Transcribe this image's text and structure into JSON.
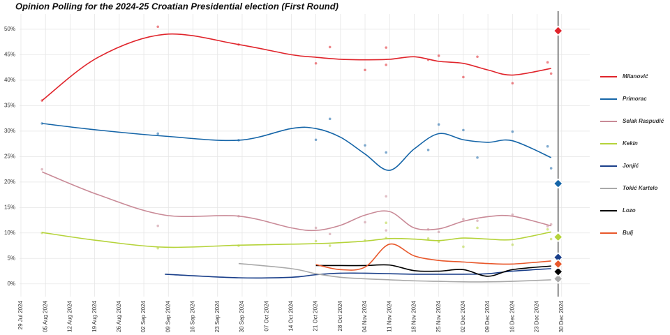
{
  "chart_data": {
    "type": "line",
    "title": "Opinion Polling for the 2024-25 Croatian Presidential election (First Round)",
    "x": [
      "2024-08-04",
      "2024-08-20",
      "2024-09-08",
      "2024-09-29",
      "2024-10-14",
      "2024-10-21",
      "2024-10-28",
      "2024-11-04",
      "2024-11-11",
      "2024-11-18",
      "2024-11-25",
      "2024-12-02",
      "2024-12-09",
      "2024-12-16",
      "2024-12-27"
    ],
    "poll_dates": [
      "2024-08-04",
      "2024-09-06",
      "2024-09-29",
      "2024-10-21",
      "2024-10-25",
      "2024-11-04",
      "2024-11-10",
      "2024-11-10",
      "2024-11-22",
      "2024-11-25",
      "2024-12-02",
      "2024-12-06",
      "2024-12-16",
      "2024-12-26",
      "2024-12-27"
    ],
    "result_date": "2024-12-29",
    "series": [
      {
        "name": "Milanović",
        "color": "#e0242b",
        "values": [
          36,
          44.5,
          49,
          47,
          45,
          44.5,
          44.1,
          44,
          44.1,
          44.6,
          43.7,
          43.3,
          42,
          41,
          42.3
        ],
        "polls": [
          36,
          50.5,
          47,
          43.3,
          46.5,
          42,
          46.4,
          43,
          44,
          44.8,
          40.6,
          44.6,
          39.4,
          43.5,
          41.3
        ],
        "result": 49.7
      },
      {
        "name": "Primorac",
        "color": "#1565a8",
        "values": [
          31.5,
          30.2,
          29,
          28.2,
          30.5,
          30.5,
          28.8,
          25.5,
          22.3,
          26.5,
          29.5,
          28.3,
          27.8,
          28.1,
          24.8
        ],
        "polls": [
          31.5,
          29.5,
          28.2,
          28.3,
          32.4,
          27.2,
          25.8,
          null,
          26.3,
          31.3,
          30.2,
          24.8,
          29.9,
          27,
          22.7
        ],
        "result": 19.7
      },
      {
        "name": "Selak Raspudić",
        "color": "#c98a97",
        "values": [
          22,
          17.5,
          13.5,
          13.3,
          11,
          10.5,
          11.5,
          13.5,
          14.2,
          11,
          10.8,
          12.3,
          13.2,
          13.3,
          11.4
        ],
        "polls": [
          22.5,
          11.4,
          13.3,
          11,
          9.8,
          12.1,
          17.2,
          10.5,
          10.7,
          10.2,
          12.7,
          12.4,
          13.6,
          11.3,
          11.7
        ],
        "result": 9.3
      },
      {
        "name": "Kekin",
        "color": "#b5d33a",
        "values": [
          10.1,
          8.5,
          7.2,
          7.6,
          7.8,
          7.9,
          8.1,
          8.4,
          8.9,
          8.8,
          8.5,
          9,
          8.8,
          8.7,
          10.2
        ],
        "polls": [
          10,
          7,
          7.5,
          8.4,
          7.5,
          8.5,
          12,
          9,
          8.9,
          8.3,
          7.3,
          11,
          7.7,
          10.7,
          8.8
        ],
        "result": 9.2
      },
      {
        "name": "Jonjić",
        "color": "#1a3f8a",
        "values": [
          null,
          null,
          1.9,
          1.2,
          1.3,
          1.8,
          2.1,
          2.1,
          2,
          1.9,
          1.9,
          1.9,
          2,
          2.5,
          3
        ],
        "result": 5.2
      },
      {
        "name": "Tokić Kartelo",
        "color": "#a9a9a9",
        "values": [
          null,
          null,
          null,
          4,
          3,
          2,
          1.3,
          1,
          0.8,
          0.6,
          0.5,
          0.4,
          0.4,
          0.5,
          0.8
        ],
        "result": 1
      },
      {
        "name": "Lozo",
        "color": "#000000",
        "values": [
          null,
          null,
          null,
          null,
          null,
          3.6,
          3.6,
          3.6,
          3.7,
          2.6,
          2.5,
          2.8,
          1.5,
          2.8,
          3.5
        ],
        "result": 2.4
      },
      {
        "name": "Bulj",
        "color": "#e8572a",
        "values": [
          null,
          null,
          null,
          null,
          null,
          3.8,
          2.8,
          3.3,
          7.8,
          5.5,
          4.6,
          4.3,
          4,
          3.9,
          4.5
        ],
        "result": 3.9
      }
    ],
    "xlim": [
      "2024-07-29",
      "2025-01-07"
    ],
    "xticks": [
      {
        "value": "2024-07-29",
        "label": "29 Jul 2024"
      },
      {
        "value": "2024-08-05",
        "label": "05 Aug 2024"
      },
      {
        "value": "2024-08-12",
        "label": "12 Aug 2024"
      },
      {
        "value": "2024-08-19",
        "label": "19 Aug 2024"
      },
      {
        "value": "2024-08-26",
        "label": "26 Aug 2024"
      },
      {
        "value": "2024-09-02",
        "label": "02 Sep 2024"
      },
      {
        "value": "2024-09-09",
        "label": "09 Sep 2024"
      },
      {
        "value": "2024-09-16",
        "label": "16 Sep 2024"
      },
      {
        "value": "2024-09-23",
        "label": "23 Sep 2024"
      },
      {
        "value": "2024-09-30",
        "label": "30 Sep 2024"
      },
      {
        "value": "2024-10-07",
        "label": "07 Oct 2024"
      },
      {
        "value": "2024-10-14",
        "label": "14 Oct 2024"
      },
      {
        "value": "2024-10-21",
        "label": "21 Oct 2024"
      },
      {
        "value": "2024-10-28",
        "label": "28 Oct 2024"
      },
      {
        "value": "2024-11-04",
        "label": "04 Nov 2024"
      },
      {
        "value": "2024-11-11",
        "label": "11 Nov 2024"
      },
      {
        "value": "2024-11-18",
        "label": "18 Nov 2024"
      },
      {
        "value": "2024-11-25",
        "label": "25 Nov 2024"
      },
      {
        "value": "2024-12-02",
        "label": "02 Dec 2024"
      },
      {
        "value": "2024-12-09",
        "label": "09 Dec 2024"
      },
      {
        "value": "2024-12-16",
        "label": "16 Dec 2024"
      },
      {
        "value": "2024-12-23",
        "label": "23 Dec 2024"
      },
      {
        "value": "2024-12-30",
        "label": "30 Dec 2024"
      }
    ],
    "ylim": [
      -2.5,
      53
    ],
    "yticks": [
      {
        "value": 0,
        "label": "0%"
      },
      {
        "value": 5,
        "label": "5%"
      },
      {
        "value": 10,
        "label": "10%"
      },
      {
        "value": 15,
        "label": "15%"
      },
      {
        "value": 20,
        "label": "20%"
      },
      {
        "value": 25,
        "label": "25%"
      },
      {
        "value": 30,
        "label": "30%"
      },
      {
        "value": 35,
        "label": "35%"
      },
      {
        "value": 40,
        "label": "40%"
      },
      {
        "value": 45,
        "label": "45%"
      },
      {
        "value": 50,
        "label": "50%"
      }
    ],
    "grid": true,
    "legend": "right"
  }
}
